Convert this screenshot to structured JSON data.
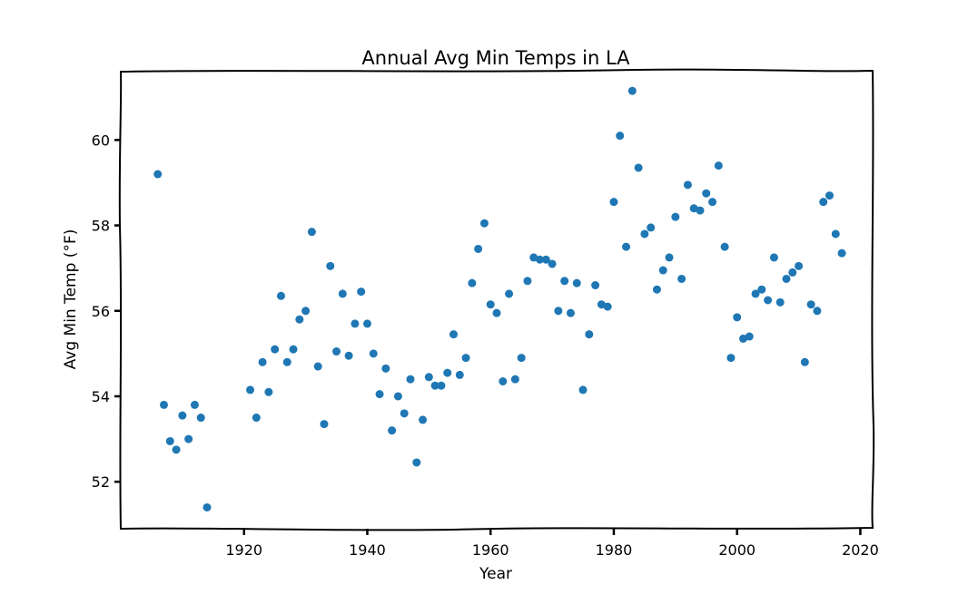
{
  "chart_data": {
    "type": "scatter",
    "title": "Annual Avg Min Temps in LA",
    "xlabel": "Year",
    "ylabel": "Avg Min Temp (°F)",
    "xlim": [
      1900,
      2022
    ],
    "ylim": [
      50.9,
      61.6
    ],
    "xticks": [
      1920,
      1940,
      1960,
      1980,
      2000,
      2020
    ],
    "yticks": [
      52,
      54,
      56,
      58,
      60
    ],
    "grid": false,
    "color": "#1f77b4",
    "series": [
      {
        "x": [
          1906,
          1907,
          1908,
          1909,
          1910,
          1911,
          1912,
          1913,
          1914,
          1921,
          1922,
          1923,
          1924,
          1925,
          1926,
          1927,
          1928,
          1929,
          1930,
          1931,
          1932,
          1933,
          1934,
          1935,
          1936,
          1937,
          1938,
          1939,
          1940,
          1941,
          1942,
          1943,
          1944,
          1945,
          1946,
          1947,
          1948,
          1949,
          1950,
          1951,
          1952,
          1953,
          1954,
          1955,
          1956,
          1957,
          1958,
          1959,
          1960,
          1961,
          1962,
          1963,
          1964,
          1965,
          1966,
          1967,
          1968,
          1969,
          1970,
          1971,
          1972,
          1973,
          1974,
          1975,
          1976,
          1977,
          1978,
          1979,
          1980,
          1981,
          1982,
          1983,
          1984,
          1985,
          1986,
          1987,
          1988,
          1989,
          1990,
          1991,
          1992,
          1993,
          1994,
          1995,
          1996,
          1997,
          1998,
          1999,
          2000,
          2001,
          2002,
          2003,
          2004,
          2005,
          2006,
          2007,
          2008,
          2009,
          2010,
          2011,
          2012,
          2013,
          2014,
          2015,
          2016,
          2017
        ],
        "y": [
          59.2,
          53.8,
          52.95,
          52.75,
          53.55,
          53.0,
          53.8,
          53.5,
          51.4,
          54.15,
          53.5,
          54.8,
          54.1,
          55.1,
          56.35,
          54.8,
          55.1,
          55.8,
          56.0,
          57.85,
          54.7,
          53.35,
          57.05,
          55.05,
          56.4,
          54.95,
          55.7,
          56.45,
          55.7,
          55.0,
          54.05,
          54.65,
          53.2,
          54.0,
          53.6,
          54.4,
          52.45,
          53.45,
          54.45,
          54.25,
          54.25,
          54.55,
          55.45,
          54.5,
          54.9,
          56.65,
          57.45,
          58.05,
          56.15,
          55.95,
          54.35,
          56.4,
          54.4,
          54.9,
          56.7,
          57.25,
          57.2,
          57.2,
          57.1,
          56.0,
          56.7,
          55.95,
          56.65,
          54.15,
          55.45,
          56.6,
          56.15,
          56.1,
          58.55,
          60.1,
          57.5,
          61.15,
          59.35,
          57.8,
          57.95,
          56.5,
          56.95,
          57.25,
          58.2,
          56.75,
          58.95,
          58.4,
          58.35,
          58.75,
          58.55,
          59.4,
          57.5,
          54.9,
          55.85,
          55.35,
          55.4,
          56.4,
          56.5,
          56.25,
          57.25,
          56.2,
          56.75,
          56.9,
          57.05,
          54.8,
          56.15,
          56.0,
          58.55,
          58.7,
          57.8,
          57.35
        ]
      }
    ]
  }
}
